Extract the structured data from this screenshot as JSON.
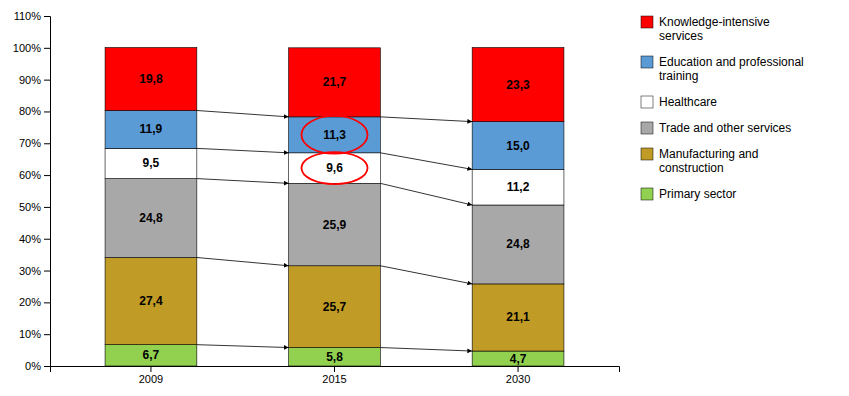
{
  "chart_data": {
    "type": "bar",
    "stacked": true,
    "data_labels": true,
    "grid": false,
    "legend": "right",
    "categories": [
      "2009",
      "2015",
      "2030"
    ],
    "series": [
      {
        "name": "Primary sector",
        "color": "#92D050",
        "values": [
          6.7,
          5.8,
          4.7
        ],
        "value_labels": [
          "6,7",
          "5,8",
          "4,7"
        ]
      },
      {
        "name": "Manufacturing and\nconstruction",
        "color": "#C09B26",
        "values": [
          27.4,
          25.7,
          21.1
        ],
        "value_labels": [
          "27,4",
          "25,7",
          "21,1"
        ]
      },
      {
        "name": "Trade and other services",
        "color": "#A8A8A8",
        "values": [
          24.8,
          25.9,
          24.8
        ],
        "value_labels": [
          "24,8",
          "25,9",
          "24,8"
        ]
      },
      {
        "name": "Healthcare",
        "color": "#FFFFFF",
        "values": [
          9.5,
          9.6,
          11.2
        ],
        "value_labels": [
          "9,5",
          "9,6",
          "11,2"
        ]
      },
      {
        "name": "Education and professional\ntraining",
        "color": "#5B9BD5",
        "values": [
          11.9,
          11.3,
          15.0
        ],
        "value_labels": [
          "11,9",
          "11,3",
          "15,0"
        ]
      },
      {
        "name": "Knowledge-intensive\nservices",
        "color": "#FF0000",
        "values": [
          19.8,
          21.7,
          23.3
        ],
        "value_labels": [
          "19,8",
          "21,7",
          "23,3"
        ]
      }
    ],
    "ylim": [
      0,
      110
    ],
    "yticks": [
      {
        "value": 0,
        "label": "0%"
      },
      {
        "value": 10,
        "label": "10%"
      },
      {
        "value": 20,
        "label": "20%"
      },
      {
        "value": 30,
        "label": "30%"
      },
      {
        "value": 40,
        "label": "40%"
      },
      {
        "value": 50,
        "label": "50%"
      },
      {
        "value": 60,
        "label": "60%"
      },
      {
        "value": 70,
        "label": "70%"
      },
      {
        "value": 80,
        "label": "80%"
      },
      {
        "value": 90,
        "label": "90%"
      },
      {
        "value": 100,
        "label": "100%"
      },
      {
        "value": 110,
        "label": "110%"
      }
    ]
  }
}
